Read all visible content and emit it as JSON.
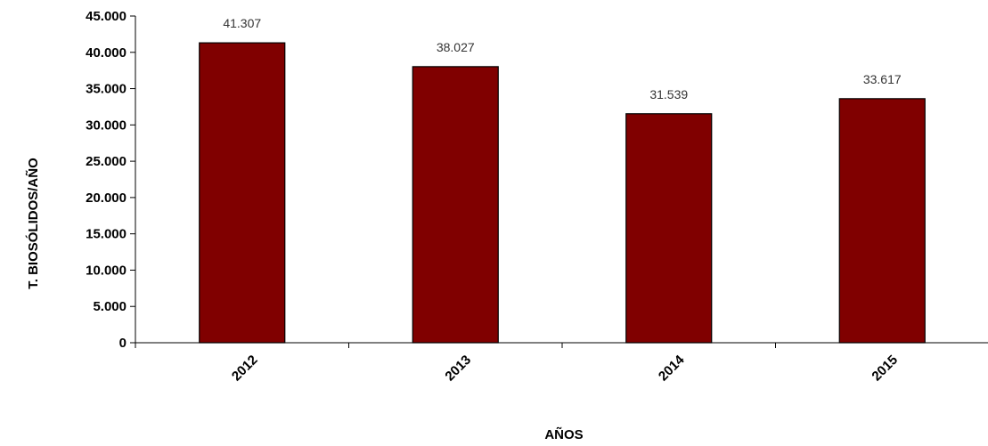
{
  "chart_data": {
    "type": "bar",
    "categories": [
      "2012",
      "2013",
      "2014",
      "2015"
    ],
    "values": [
      41307,
      38027,
      31539,
      33617
    ],
    "value_labels": [
      "41.307",
      "38.027",
      "31.539",
      "33.617"
    ],
    "xlabel": "AÑOS",
    "ylabel": "T. BIOSÓLIDOS/AÑO",
    "ylim": [
      0,
      45000
    ],
    "yticks": [
      0,
      5000,
      10000,
      15000,
      20000,
      25000,
      30000,
      35000,
      40000,
      45000
    ],
    "ytick_labels": [
      "0",
      "5.000",
      "10.000",
      "15.000",
      "20.000",
      "25.000",
      "30.000",
      "35.000",
      "40.000",
      "45.000"
    ],
    "bar_color": "#800000",
    "grid": false,
    "legend": "none"
  }
}
